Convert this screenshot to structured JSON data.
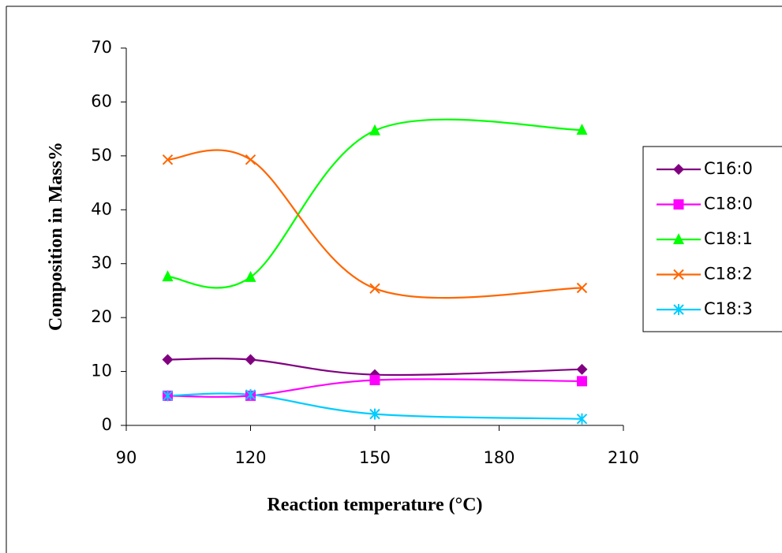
{
  "chart_data": {
    "type": "line",
    "x_label": "Reaction temperature  (°C)",
    "y_label": "Composition in Mass%",
    "x": [
      100,
      120,
      150,
      200
    ],
    "series": [
      {
        "name": "C16:0",
        "color": "#800080",
        "marker": "diamond",
        "values": [
          12.2,
          12.2,
          9.4,
          10.4
        ]
      },
      {
        "name": "C18:0",
        "color": "#ff00ff",
        "marker": "square",
        "values": [
          5.5,
          5.5,
          8.4,
          8.2
        ]
      },
      {
        "name": "C18:1",
        "color": "#00ff00",
        "marker": "triangle",
        "values": [
          27.6,
          27.5,
          54.7,
          54.8
        ]
      },
      {
        "name": "C18:2",
        "color": "#ff6600",
        "marker": "x",
        "values": [
          49.3,
          49.3,
          25.4,
          25.5
        ]
      },
      {
        "name": "C18:3",
        "color": "#00ccff",
        "marker": "asterisk",
        "values": [
          5.5,
          5.7,
          2.1,
          1.2
        ]
      }
    ],
    "xlim": [
      90,
      210
    ],
    "xticks": [
      90,
      120,
      150,
      180,
      210
    ],
    "ylim": [
      0,
      70
    ],
    "yticks": [
      0,
      10,
      20,
      30,
      40,
      50,
      60,
      70
    ],
    "smooth": true,
    "legend": "right"
  }
}
